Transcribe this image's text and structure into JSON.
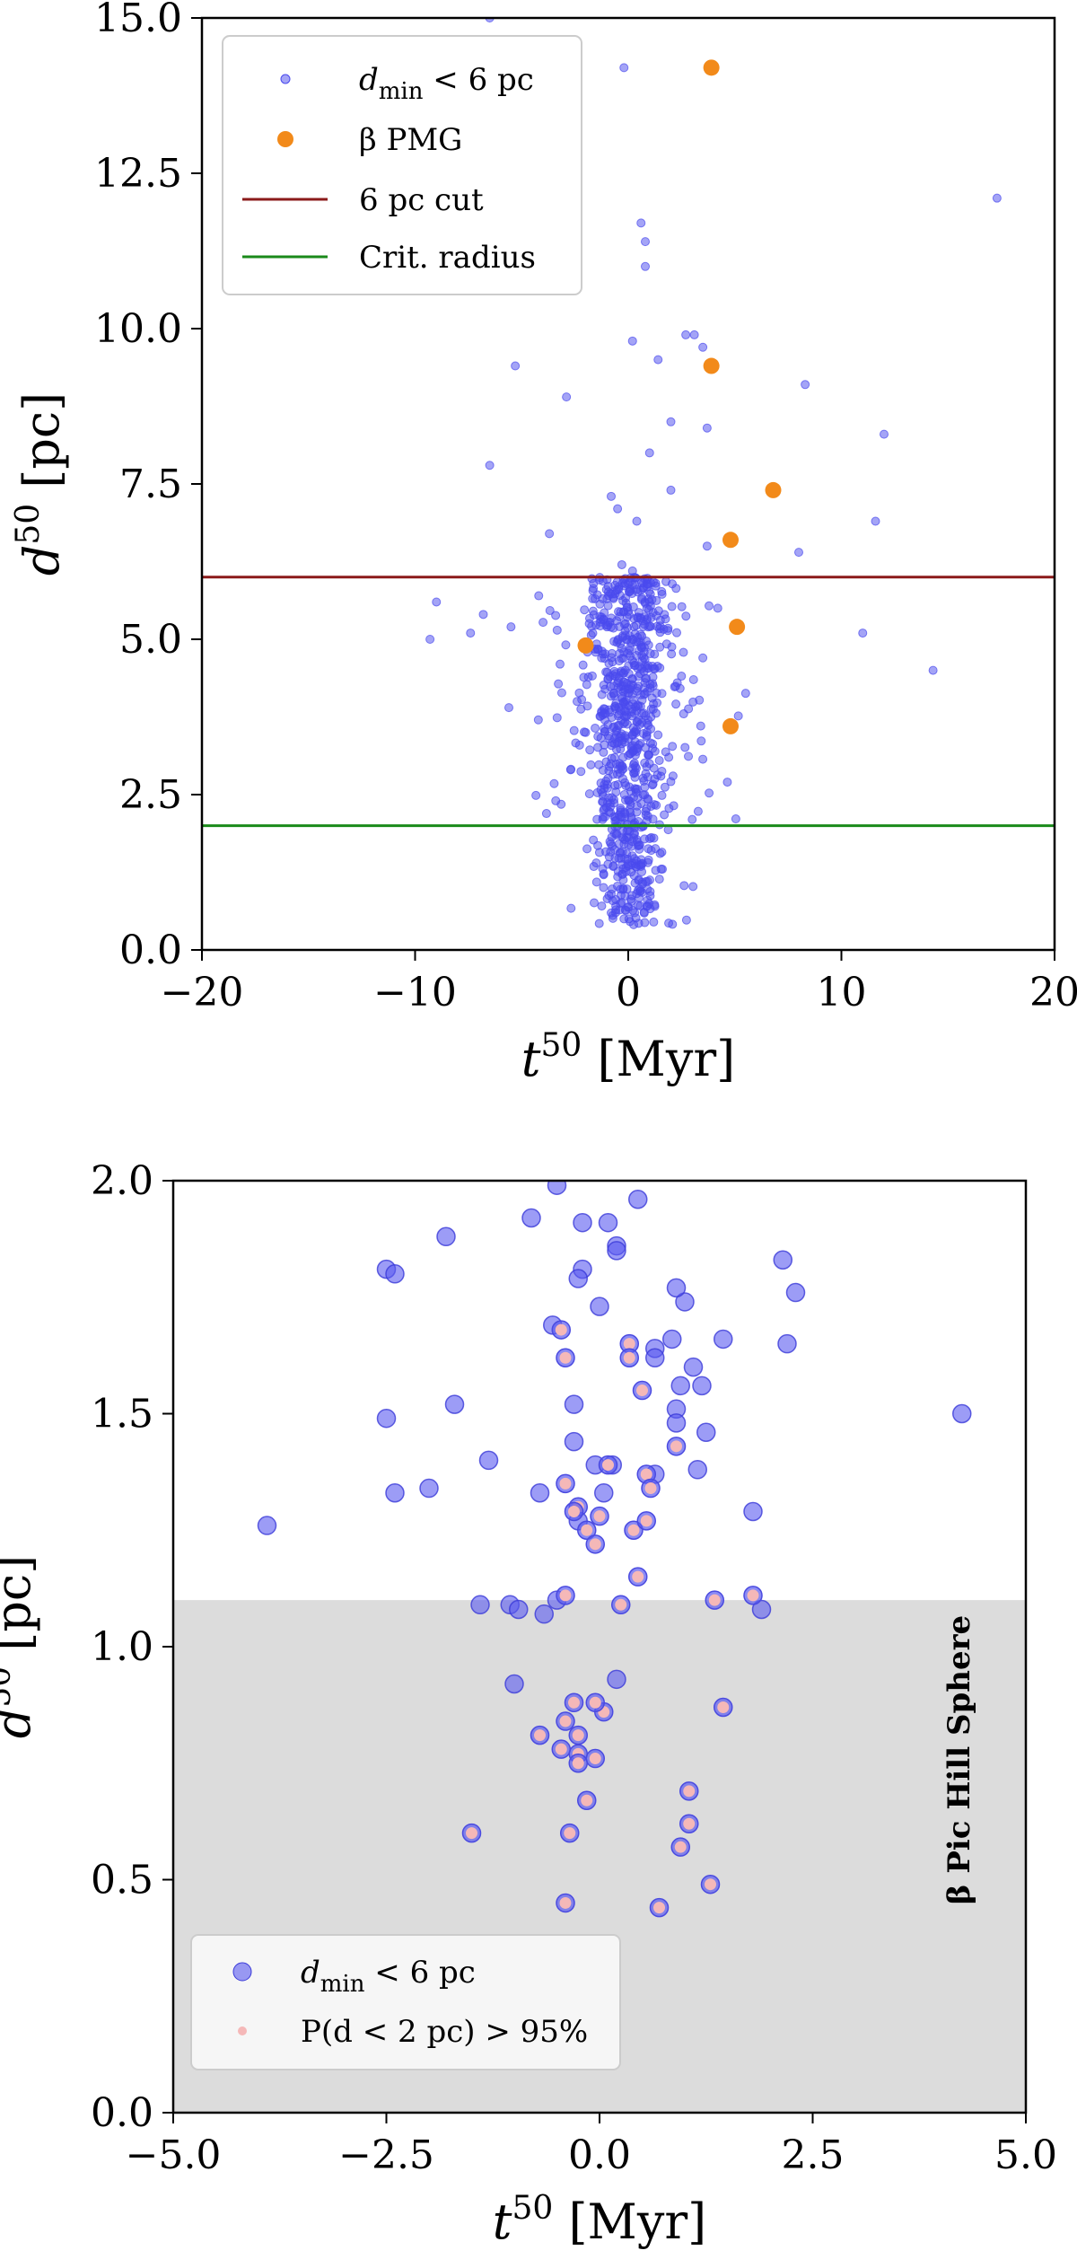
{
  "chart_data": [
    {
      "type": "scatter",
      "xlabel": "t^50 [Myr]",
      "ylabel": "d^50 [pc]",
      "xlim": [
        -20,
        20
      ],
      "ylim": [
        0,
        15
      ],
      "xticks": [
        "−20",
        "−10",
        "0",
        "10",
        "20"
      ],
      "xtick_values": [
        -20,
        -10,
        0,
        10,
        20
      ],
      "yticks": [
        "0.0",
        "2.5",
        "5.0",
        "7.5",
        "10.0",
        "12.5",
        "15.0"
      ],
      "ytick_values": [
        0,
        2.5,
        5,
        7.5,
        10,
        12.5,
        15
      ],
      "legend_position": "top-left",
      "lines": [
        {
          "name": "6 pc cut",
          "y": 6,
          "color": "#8b1a1a"
        },
        {
          "name": "Crit. radius",
          "y": 2,
          "color": "#1a8a1a"
        }
      ],
      "series": [
        {
          "name": "d_min < 6 pc",
          "legend_main": "d",
          "legend_sub": "min",
          "legend_rest": " < 6 pc",
          "color": "#4a4aee",
          "points": [
            [
              -6.5,
              15.0
            ],
            [
              -0.2,
              14.2
            ],
            [
              17.3,
              12.1
            ],
            [
              0.6,
              11.7
            ],
            [
              0.8,
              11.4
            ],
            [
              0.8,
              11.0
            ],
            [
              -5.3,
              9.4
            ],
            [
              0.2,
              9.8
            ],
            [
              2.7,
              9.9
            ],
            [
              3.1,
              9.9
            ],
            [
              3.5,
              9.7
            ],
            [
              1.4,
              9.5
            ],
            [
              -2.9,
              8.9
            ],
            [
              8.3,
              9.1
            ],
            [
              2.0,
              8.5
            ],
            [
              3.7,
              8.4
            ],
            [
              12.0,
              8.3
            ],
            [
              -6.5,
              7.8
            ],
            [
              1.0,
              8.0
            ],
            [
              -0.8,
              7.3
            ],
            [
              -0.5,
              7.1
            ],
            [
              0.4,
              6.9
            ],
            [
              -3.7,
              6.7
            ],
            [
              2.0,
              7.4
            ],
            [
              3.7,
              6.5
            ],
            [
              11.6,
              6.9
            ],
            [
              8.0,
              6.4
            ],
            [
              -9.0,
              5.6
            ],
            [
              -6.8,
              5.4
            ],
            [
              -5.5,
              5.2
            ],
            [
              -7.4,
              5.1
            ],
            [
              -9.3,
              5.0
            ],
            [
              11.0,
              5.1
            ],
            [
              14.3,
              4.5
            ],
            [
              -5.6,
              3.9
            ],
            [
              2.1,
              2.8
            ],
            [
              -3.2,
              4.6
            ],
            [
              3.5,
              4.7
            ],
            [
              -2.0,
              3.5
            ],
            [
              1.9,
              3.1
            ],
            [
              -2.7,
              2.9
            ],
            [
              2.6,
              3.8
            ],
            [
              -3.4,
              2.4
            ],
            [
              3.0,
              2.1
            ],
            [
              -4.2,
              5.7
            ],
            [
              4.2,
              5.5
            ],
            [
              -1.5,
              1.4
            ],
            [
              1.6,
              1.3
            ],
            [
              -0.8,
              0.9
            ],
            [
              0.9,
              0.8
            ],
            [
              -0.2,
              0.5
            ],
            [
              0.3,
              0.6
            ],
            [
              -1.2,
              2.1
            ],
            [
              1.2,
              1.8
            ],
            [
              -0.4,
              3.0
            ],
            [
              0.5,
              3.3
            ],
            [
              -0.6,
              4.4
            ],
            [
              0.6,
              4.9
            ],
            [
              -1.0,
              5.2
            ],
            [
              1.0,
              5.6
            ],
            [
              0.0,
              5.9
            ],
            [
              0.2,
              6.1
            ],
            [
              -0.3,
              6.2
            ],
            [
              0.4,
              5.8
            ],
            [
              -2.4,
              4.0
            ],
            [
              2.3,
              4.3
            ]
          ],
          "cloud": {
            "n": 820,
            "x_sigma": 1.15,
            "x_tail_sigma": 3.0,
            "y_range": [
              0.4,
              6.0
            ]
          }
        },
        {
          "name": "β PMG",
          "legend_main": "β PMG",
          "color": "#f28a1a",
          "points": [
            [
              3.9,
              14.2
            ],
            [
              3.9,
              9.4
            ],
            [
              6.8,
              7.4
            ],
            [
              4.8,
              6.6
            ],
            [
              5.1,
              5.2
            ],
            [
              -2.0,
              4.9
            ],
            [
              4.8,
              3.6
            ]
          ]
        }
      ]
    },
    {
      "type": "scatter",
      "xlabel": "t^50 [Myr]",
      "ylabel": "d^50 [pc]",
      "xlim": [
        -5,
        5
      ],
      "ylim": [
        0,
        2
      ],
      "xticks": [
        "−5.0",
        "−2.5",
        "0.0",
        "2.5",
        "5.0"
      ],
      "xtick_values": [
        -5,
        -2.5,
        0,
        2.5,
        5
      ],
      "yticks": [
        "0.0",
        "0.5",
        "1.0",
        "1.5",
        "2.0"
      ],
      "ytick_values": [
        0,
        0.5,
        1,
        1.5,
        2
      ],
      "legend_position": "bottom-left",
      "shaded_region": {
        "y": [
          0,
          1.1
        ],
        "label": "β Pic Hill Sphere",
        "color": "#dcdcdc"
      },
      "series": [
        {
          "name": "d_min < 6 pc",
          "legend_main": "d",
          "legend_sub": "min",
          "legend_rest": " < 6 pc",
          "color": "#5a5af0",
          "points": [
            [
              -2.5,
              1.81
            ],
            [
              -2.4,
              1.8
            ],
            [
              -1.8,
              1.88
            ],
            [
              -0.8,
              1.92
            ],
            [
              -0.5,
              1.99
            ],
            [
              -0.2,
              1.91
            ],
            [
              -0.2,
              1.81
            ],
            [
              -0.25,
              1.79
            ],
            [
              0.2,
              1.86
            ],
            [
              0.2,
              1.85
            ],
            [
              0.45,
              1.96
            ],
            [
              0.1,
              1.91
            ],
            [
              2.15,
              1.83
            ],
            [
              2.3,
              1.76
            ],
            [
              1.0,
              1.74
            ],
            [
              0.9,
              1.77
            ],
            [
              0.0,
              1.73
            ],
            [
              -0.55,
              1.69
            ],
            [
              0.85,
              1.66
            ],
            [
              1.45,
              1.66
            ],
            [
              0.65,
              1.64
            ],
            [
              2.2,
              1.65
            ],
            [
              0.65,
              1.62
            ],
            [
              1.1,
              1.6
            ],
            [
              1.2,
              1.56
            ],
            [
              0.95,
              1.56
            ],
            [
              -1.7,
              1.52
            ],
            [
              -0.3,
              1.52
            ],
            [
              0.9,
              1.51
            ],
            [
              4.25,
              1.5
            ],
            [
              -2.5,
              1.49
            ],
            [
              0.9,
              1.48
            ],
            [
              1.25,
              1.46
            ],
            [
              -0.3,
              1.44
            ],
            [
              -1.3,
              1.4
            ],
            [
              0.15,
              1.39
            ],
            [
              -2.0,
              1.34
            ],
            [
              -2.4,
              1.33
            ],
            [
              -0.05,
              1.39
            ],
            [
              1.15,
              1.38
            ],
            [
              -0.7,
              1.33
            ],
            [
              0.65,
              1.37
            ],
            [
              0.05,
              1.33
            ],
            [
              -3.9,
              1.26
            ],
            [
              1.8,
              1.29
            ],
            [
              -0.25,
              1.27
            ],
            [
              -0.5,
              1.1
            ],
            [
              -1.4,
              1.09
            ],
            [
              -1.05,
              1.09
            ],
            [
              -0.95,
              1.08
            ],
            [
              -0.65,
              1.07
            ],
            [
              1.9,
              1.08
            ],
            [
              -1.0,
              0.92
            ],
            [
              0.2,
              0.93
            ]
          ]
        },
        {
          "name": "P(d < 2 pc) > 95%",
          "legend_main": "P(d < 2 pc) > 95%",
          "color": "#f5b8b8",
          "points": [
            [
              -0.45,
              1.68
            ],
            [
              -0.4,
              1.62
            ],
            [
              0.35,
              1.65
            ],
            [
              0.35,
              1.62
            ],
            [
              0.5,
              1.55
            ],
            [
              0.9,
              1.43
            ],
            [
              0.1,
              1.39
            ],
            [
              -0.4,
              1.35
            ],
            [
              0.55,
              1.37
            ],
            [
              0.6,
              1.34
            ],
            [
              -0.25,
              1.3
            ],
            [
              -0.3,
              1.29
            ],
            [
              -0.15,
              1.25
            ],
            [
              0.4,
              1.25
            ],
            [
              -0.05,
              1.22
            ],
            [
              0.55,
              1.27
            ],
            [
              0.45,
              1.15
            ],
            [
              0.0,
              1.28
            ],
            [
              1.35,
              1.1
            ],
            [
              1.8,
              1.11
            ],
            [
              -0.4,
              1.11
            ],
            [
              0.25,
              1.09
            ],
            [
              -0.7,
              0.81
            ],
            [
              -0.25,
              0.81
            ],
            [
              -0.4,
              0.84
            ],
            [
              0.05,
              0.86
            ],
            [
              -0.3,
              0.88
            ],
            [
              -0.05,
              0.88
            ],
            [
              -0.25,
              0.77
            ],
            [
              -0.45,
              0.78
            ],
            [
              -0.05,
              0.76
            ],
            [
              -0.25,
              0.75
            ],
            [
              1.45,
              0.87
            ],
            [
              -0.15,
              0.67
            ],
            [
              1.05,
              0.69
            ],
            [
              1.05,
              0.62
            ],
            [
              -1.5,
              0.6
            ],
            [
              -0.35,
              0.6
            ],
            [
              0.95,
              0.57
            ],
            [
              1.3,
              0.49
            ],
            [
              -0.4,
              0.45
            ],
            [
              0.7,
              0.44
            ]
          ]
        }
      ]
    }
  ]
}
